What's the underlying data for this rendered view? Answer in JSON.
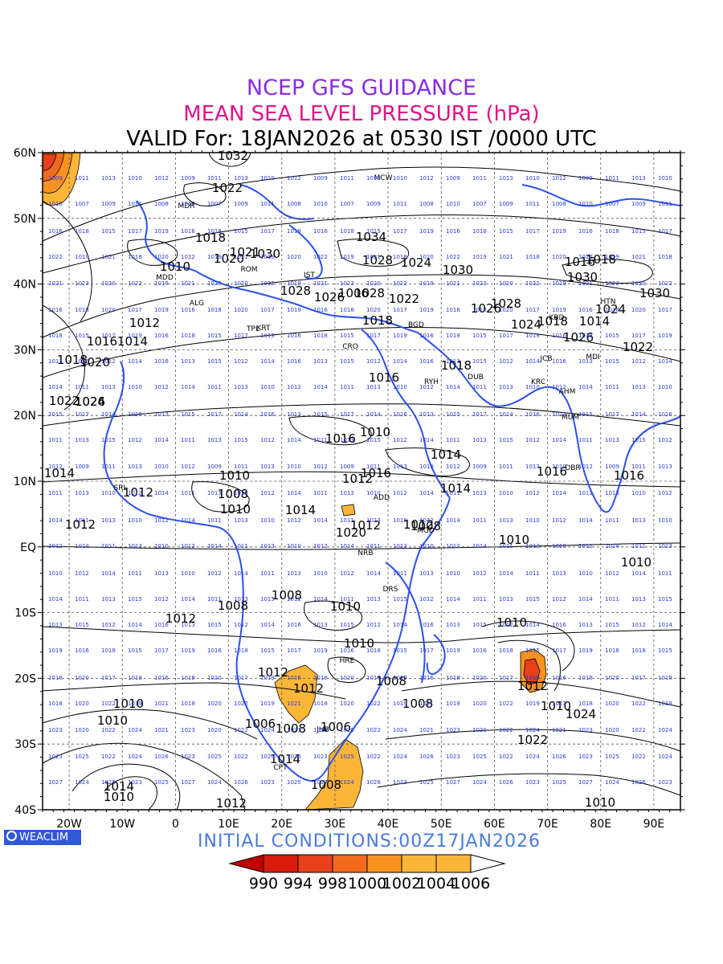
{
  "header": {
    "title1": "NCEP GFS GUIDANCE",
    "title2": "MEAN SEA LEVEL PRESSURE (hPa)",
    "title3": "VALID For: 18JAN2026 at 0530 IST /0000 UTC",
    "title1_color": "#8a2be2",
    "title2_color": "#e0138c"
  },
  "map": {
    "lat_labels": [
      "60N",
      "50N",
      "40N",
      "30N",
      "20N",
      "10N",
      "EQ",
      "10S",
      "20S",
      "30S",
      "40S"
    ],
    "lon_labels": [
      "20W",
      "10W",
      "0",
      "10E",
      "20E",
      "30E",
      "40E",
      "50E",
      "60E",
      "70E",
      "80E",
      "90E"
    ],
    "coastline_color": "#2b50f0",
    "contour_color": "#000000",
    "pressure_labels": [
      "1032",
      "1022",
      "1030",
      "1034",
      "1018",
      "1020",
      "1021",
      "1028",
      "1030",
      "1010",
      "1012",
      "1014",
      "1016",
      "1018",
      "1020",
      "1022",
      "1024",
      "1026",
      "1028",
      "1022",
      "1028",
      "1024",
      "1026",
      "1024",
      "1018",
      "1014",
      "1026",
      "1022",
      "1018",
      "1018",
      "1016",
      "1016",
      "1014",
      "1014",
      "1016",
      "1016",
      "1014",
      "1012",
      "1010",
      "1012",
      "1010",
      "1014",
      "1012",
      "1012",
      "1012",
      "1008",
      "1010",
      "1010",
      "1010",
      "1008",
      "1008",
      "1012",
      "1010",
      "1010",
      "1012",
      "1012",
      "1008",
      "1012",
      "1010",
      "1010",
      "1008",
      "1006",
      "1008",
      "1010",
      "1024",
      "1022",
      "1014",
      "1010",
      "1012",
      "1008",
      "1006",
      "1010",
      "1006",
      "1014",
      "1016",
      "1018",
      "1028",
      "1026",
      "1020",
      "1016",
      "1010",
      "1008",
      "1024",
      "1030",
      "1030"
    ],
    "stations": [
      "MCW",
      "MDR",
      "ROM",
      "MDD",
      "ALG",
      "TPL",
      "KRT",
      "IST",
      "CRO",
      "BGD",
      "RYH",
      "DUB",
      "KRC",
      "AHM",
      "MUM",
      "JCB",
      "KBD",
      "MDI",
      "HTN",
      "DBR",
      "SRL",
      "ADD",
      "MGD",
      "NRB",
      "DRS",
      "HRE",
      "JHB",
      "CPT"
    ]
  },
  "colorbar": {
    "labels": [
      "990",
      "994",
      "998",
      "1000",
      "1002",
      "1004",
      "1006"
    ],
    "colors": [
      "#c00000",
      "#d81c0c",
      "#e8401a",
      "#f26a1c",
      "#f79220",
      "#fbb638",
      "#ffffff"
    ]
  },
  "footer": {
    "initial_conditions": "INITIAL  CONDITIONS:00Z17JAN2026",
    "logo_text": "WEACLIM"
  }
}
